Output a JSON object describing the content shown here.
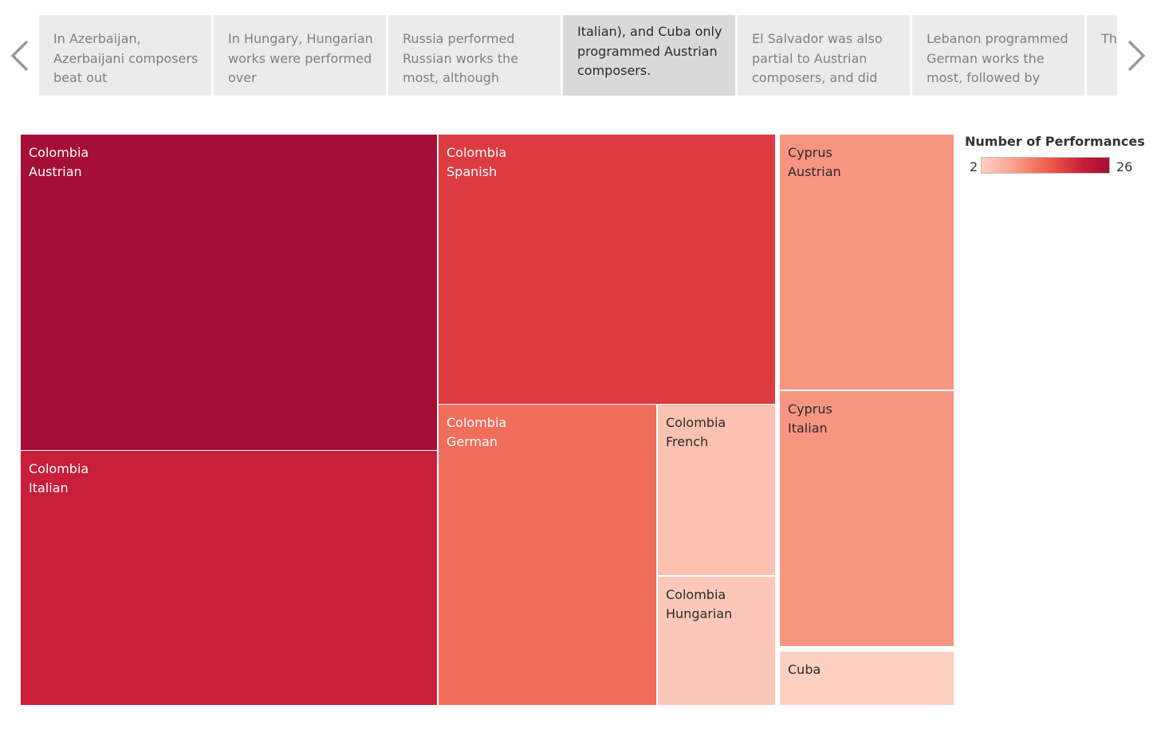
{
  "story_points": [
    {
      "text": "In Azerbaijan, Azerbaijani composers beat out"
    },
    {
      "text": "In Hungary, Hungarian works were performed over"
    },
    {
      "text": "Russia performed Russian works the most, although"
    },
    {
      "text": "Italian), and Cuba only programmed Austrian composers."
    },
    {
      "text": "El Salvador was also partial to Austrian composers, and did"
    },
    {
      "text": "Lebanon programmed German works the most, followed by"
    },
    {
      "text": "Th Th the"
    }
  ],
  "active_story_point": 3,
  "legend": {
    "title": "Number of Performances",
    "min_label": "2",
    "max_label": "26",
    "gradient_colors": [
      "#fdd0c2",
      "#fcab9a",
      "#f47c64",
      "#e64b45",
      "#c71c3a",
      "#a50e36"
    ]
  },
  "chart_data": {
    "type": "treemap",
    "measure": "Number of Performances",
    "color_range": [
      2,
      26
    ],
    "items": [
      {
        "country": "Colombia",
        "composer": "Austrian",
        "value": 26
      },
      {
        "country": "Colombia",
        "composer": "Italian",
        "value": 21
      },
      {
        "country": "Colombia",
        "composer": "Spanish",
        "value": 18
      },
      {
        "country": "Colombia",
        "composer": "German",
        "value": 13
      },
      {
        "country": "Colombia",
        "composer": "French",
        "value": 4
      },
      {
        "country": "Colombia",
        "composer": "Hungarian",
        "value": 3
      },
      {
        "country": "Cyprus",
        "composer": "Austrian",
        "value": 9
      },
      {
        "country": "Cyprus",
        "composer": "Italian",
        "value": 9
      },
      {
        "country": "Cuba",
        "composer": "",
        "value": 2
      }
    ]
  }
}
